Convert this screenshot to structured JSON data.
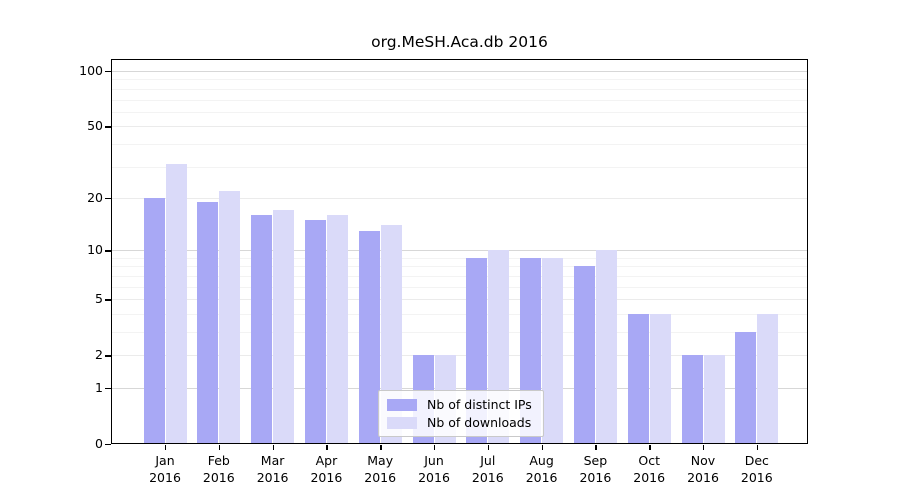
{
  "title": "org.MeSH.Aca.db 2016",
  "chart_data": {
    "type": "bar",
    "title": "org.MeSH.Aca.db 2016",
    "categories": [
      "Jan 2016",
      "Feb 2016",
      "Mar 2016",
      "Apr 2016",
      "May 2016",
      "Jun 2016",
      "Jul 2016",
      "Aug 2016",
      "Sep 2016",
      "Oct 2016",
      "Nov 2016",
      "Dec 2016"
    ],
    "month_labels": [
      "Jan",
      "Feb",
      "Mar",
      "Apr",
      "May",
      "Jun",
      "Jul",
      "Aug",
      "Sep",
      "Oct",
      "Nov",
      "Dec"
    ],
    "year_label": "2016",
    "series": [
      {
        "name": "Nb of distinct IPs",
        "color": "#a8a8f5",
        "values": [
          20,
          19,
          16,
          15,
          13,
          2,
          9,
          9,
          8,
          4,
          2,
          3
        ]
      },
      {
        "name": "Nb of downloads",
        "color": "#dadaf9",
        "values": [
          31,
          22,
          17,
          16,
          14,
          2,
          10,
          9,
          10,
          4,
          2,
          4
        ]
      }
    ],
    "xlabel": "",
    "ylabel": "",
    "y_axis_scale": "log(1+x)",
    "y_ticks": [
      0,
      1,
      2,
      5,
      10,
      20,
      50,
      100
    ],
    "ylim": [
      0,
      116
    ],
    "grid": true,
    "legend_position": "bottom-center-inside"
  }
}
